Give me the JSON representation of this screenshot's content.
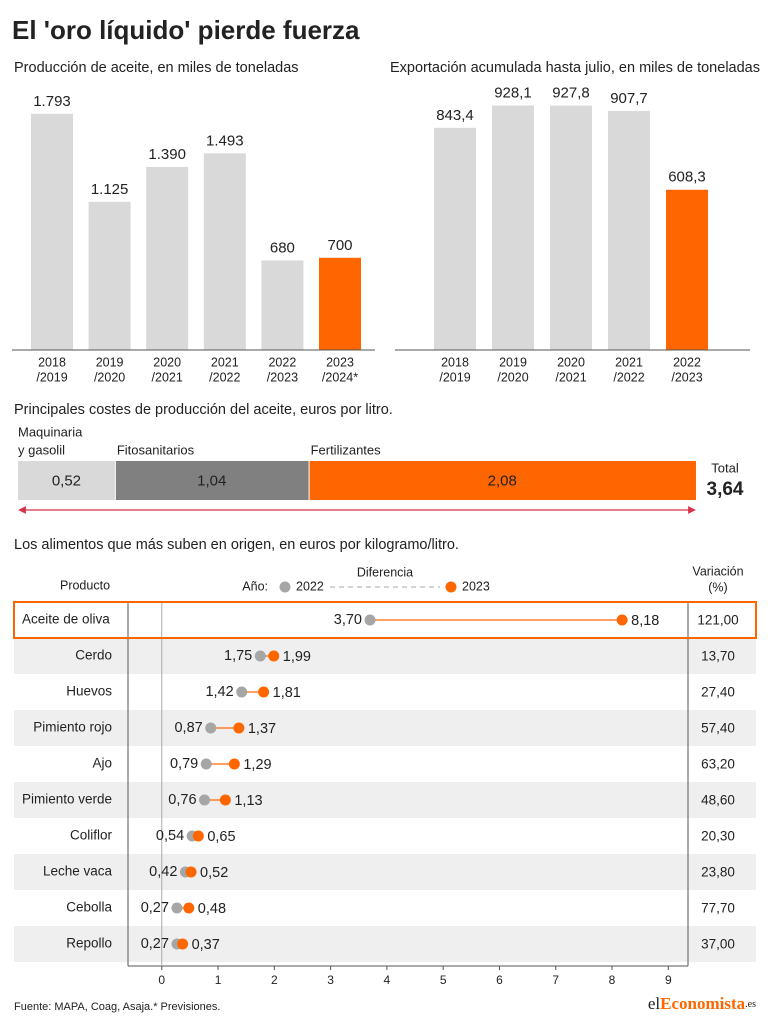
{
  "title": "El 'oro líquido' pierde fuerza",
  "chart_data": [
    {
      "type": "bar",
      "title": "Producción de aceite, en miles de toneladas",
      "categories": [
        [
          "2018",
          "/2019"
        ],
        [
          "2019",
          "/2020"
        ],
        [
          "2020",
          "/2021"
        ],
        [
          "2021",
          "/2022"
        ],
        [
          "2022",
          "/2023"
        ],
        [
          "2023",
          "/2024*"
        ]
      ],
      "values": [
        1793,
        1125,
        1390,
        1493,
        680,
        700
      ],
      "value_labels": [
        "1.793",
        "1.125",
        "1.390",
        "1.493",
        "680",
        "700"
      ],
      "colors": [
        "#d9d9d9",
        "#d9d9d9",
        "#d9d9d9",
        "#d9d9d9",
        "#d9d9d9",
        "#ff6600"
      ],
      "ylim": [
        0,
        1860
      ]
    },
    {
      "type": "bar",
      "title": "Exportación acumulada hasta julio, en miles de toneladas",
      "categories": [
        [
          "2018",
          "/2019"
        ],
        [
          "2019",
          "/2020"
        ],
        [
          "2020",
          "/2021"
        ],
        [
          "2021",
          "/2022"
        ],
        [
          "2022",
          "/2023"
        ]
      ],
      "values": [
        843.4,
        928.1,
        927.8,
        907.7,
        608.3
      ],
      "value_labels": [
        "843,4",
        "928,1",
        "927,8",
        "907,7",
        "608,3"
      ],
      "colors": [
        "#d9d9d9",
        "#d9d9d9",
        "#d9d9d9",
        "#d9d9d9",
        "#ff6600"
      ],
      "ylim": [
        0,
        930
      ]
    },
    {
      "type": "stacked_bar",
      "title": "Principales costes de producción del aceite, euros por litro.",
      "series": [
        {
          "name": [
            "Maquinaria",
            "y gasolil"
          ],
          "color": "#d9d9d9",
          "values": [
            0.52
          ],
          "value_labels": [
            "0,52"
          ]
        },
        {
          "name": [
            "Fitosanitarios"
          ],
          "color": "#808080",
          "values": [
            1.04
          ],
          "value_labels": [
            "1,04"
          ]
        },
        {
          "name": [
            "Fertilizantes"
          ],
          "color": "#ff6600",
          "values": [
            2.08
          ],
          "value_labels": [
            "2,08"
          ]
        }
      ],
      "total_label": "Total",
      "total": 3.64,
      "total_value_label": "3,64"
    },
    {
      "type": "dumbbell",
      "title": "Los alimentos que más suben en origen, en euros por kilogramo/litro.",
      "category_header": "Producto",
      "legend_prefix": "Año:",
      "difference_label": "Diferencia",
      "variation_header": [
        "Variación",
        "(%)"
      ],
      "categories": [
        "Aceite de oliva",
        "Cerdo",
        "Huevos",
        "Pimiento rojo",
        "Ajo",
        "Pimiento verde",
        "Coliflor",
        "Leche vaca",
        "Cebolla",
        "Repollo"
      ],
      "series": [
        {
          "name": "2022",
          "color": "#a6a6a6",
          "values": [
            3.7,
            1.75,
            1.42,
            0.87,
            0.79,
            0.76,
            0.54,
            0.42,
            0.27,
            0.27
          ],
          "value_labels": [
            "3,70",
            "1,75",
            "1,42",
            "0,87",
            "0,79",
            "0,76",
            "0,54",
            "0,42",
            "0,27",
            "0,27"
          ]
        },
        {
          "name": "2023",
          "color": "#ff6600",
          "values": [
            8.18,
            1.99,
            1.81,
            1.37,
            1.29,
            1.13,
            0.65,
            0.52,
            0.48,
            0.37
          ],
          "value_labels": [
            "8,18",
            "1,99",
            "1,81",
            "1,37",
            "1,29",
            "1,13",
            "0,65",
            "0,52",
            "0,48",
            "0,37"
          ]
        }
      ],
      "variation": [
        121.0,
        13.7,
        27.4,
        57.4,
        63.2,
        48.6,
        20.3,
        23.8,
        77.7,
        37.0
      ],
      "variation_labels": [
        "121,00",
        "13,70",
        "27,40",
        "57,40",
        "63,20",
        "48,60",
        "20,30",
        "23,80",
        "77,70",
        "37,00"
      ],
      "highlight": 0,
      "xlim": [
        -0.6,
        9.35
      ],
      "xticks": [
        0,
        1,
        2,
        3,
        4,
        5,
        6,
        7,
        8,
        9
      ]
    }
  ],
  "source": "Fuente: MAPA, Coag, Asaja.* Previsiones.",
  "brand": [
    "el",
    "Economista",
    ".es"
  ]
}
